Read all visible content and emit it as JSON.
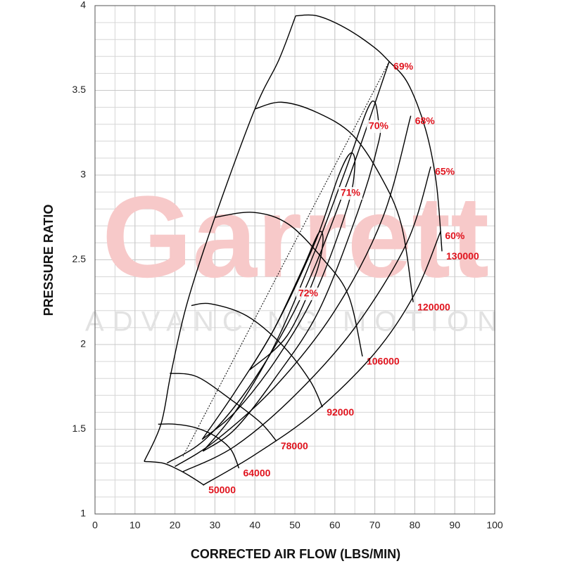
{
  "chart_data": {
    "type": "line",
    "watermark": "Garrett",
    "watermark_subtitle": "ADVANCING MOTION",
    "x_label": "CORRECTED AIR FLOW (LBS/MIN)",
    "y_label": "PRESSURE RATIO",
    "xlim": [
      0,
      100
    ],
    "ylim": [
      1,
      4
    ],
    "xticks": [
      0,
      10,
      20,
      30,
      40,
      50,
      60,
      70,
      80,
      90,
      100
    ],
    "yticks": [
      1,
      1.5,
      2,
      2.5,
      3,
      3.5,
      4
    ],
    "grid": true,
    "x_grid_step": 5,
    "y_grid_step": 0.1,
    "label_color": "#e0141e",
    "series": [
      {
        "color": "#000000",
        "x": [
          12.3,
          16.5,
          19,
          23,
          30,
          40,
          46,
          50.2
        ],
        "values": [
          1.31,
          1.53,
          1.83,
          2.24,
          2.75,
          3.39,
          3.68,
          3.94
        ]
      },
      {
        "name": "50000",
        "color": "#000000",
        "x": [
          12.3,
          17,
          21,
          24,
          27.3
        ],
        "values": [
          1.31,
          1.3,
          1.26,
          1.22,
          1.17
        ]
      },
      {
        "name": "64000",
        "color": "#000000",
        "x": [
          15.8,
          20,
          25,
          30,
          34,
          36
        ],
        "values": [
          1.53,
          1.53,
          1.51,
          1.46,
          1.38,
          1.27
        ]
      },
      {
        "name": "78000",
        "color": "#000000",
        "x": [
          18.7,
          25.5,
          34.3,
          41.4,
          45.4
        ],
        "values": [
          1.83,
          1.81,
          1.67,
          1.54,
          1.43
        ]
      },
      {
        "name": "92000",
        "color": "#000000",
        "x": [
          24.1,
          29,
          37.9,
          46.7,
          53.7,
          56.9
        ],
        "values": [
          2.23,
          2.24,
          2.17,
          2.0,
          1.79,
          1.63
        ]
      },
      {
        "name": "106000",
        "color": "#000000",
        "x": [
          29.9,
          39.6,
          48.4,
          57.2,
          63.4,
          66.9
        ],
        "values": [
          2.75,
          2.78,
          2.71,
          2.5,
          2.29,
          1.93
        ]
      },
      {
        "name": "120000",
        "color": "#000000",
        "x": [
          40,
          46.7,
          55.5,
          64.3,
          71.3,
          76.6,
          79.6
        ],
        "values": [
          3.39,
          3.43,
          3.37,
          3.24,
          3.0,
          2.71,
          2.25
        ]
      },
      {
        "name": "130000",
        "color": "#000000",
        "x": [
          50.2,
          55.5,
          62.5,
          69.5,
          73.6,
          78.3,
          82.7,
          85.4,
          86.8
        ],
        "values": [
          3.94,
          3.94,
          3.87,
          3.76,
          3.67,
          3.54,
          3.27,
          2.95,
          2.55
        ]
      },
      {
        "color": "#000000",
        "dashed": true,
        "x": [
          22,
          73.6
        ],
        "values": [
          1.34,
          3.67
        ]
      },
      {
        "name": "60%",
        "color": "#000000",
        "x": [
          27,
          40,
          55,
          70,
          80,
          86.5
        ],
        "values": [
          1.17,
          1.35,
          1.6,
          1.95,
          2.3,
          2.67
        ]
      },
      {
        "name": "65%",
        "color": "#000000",
        "x": [
          22,
          35,
          50,
          65,
          78,
          84
        ],
        "values": [
          1.25,
          1.4,
          1.7,
          2.1,
          2.6,
          3.05
        ]
      },
      {
        "name": "68%",
        "color": "#000000",
        "x": [
          20,
          30,
          45,
          60,
          72,
          79
        ],
        "values": [
          1.28,
          1.43,
          1.75,
          2.2,
          2.75,
          3.35
        ]
      },
      {
        "name": "69%",
        "color": "#000000",
        "x": [
          18,
          28,
          40,
          52,
          63,
          73.6
        ],
        "values": [
          1.3,
          1.45,
          1.8,
          2.3,
          2.95,
          3.67
        ]
      },
      {
        "name": "70%",
        "color": "#000000",
        "x": [
          27,
          35,
          45,
          55,
          63,
          68,
          70,
          71,
          71,
          66,
          56,
          45,
          35,
          27
        ],
        "values": [
          1.37,
          1.6,
          2.0,
          2.55,
          3.05,
          3.38,
          3.43,
          3.3,
          3.2,
          2.8,
          2.2,
          1.8,
          1.5,
          1.37
        ]
      },
      {
        "name": "71%",
        "color": "#000000",
        "x": [
          26.8,
          35,
          45,
          55,
          61,
          64,
          65,
          63,
          55,
          45,
          35,
          26.8
        ],
        "values": [
          1.44,
          1.72,
          2.1,
          2.6,
          3.0,
          3.13,
          3.05,
          2.8,
          2.3,
          1.9,
          1.6,
          1.44
        ]
      },
      {
        "name": "72%",
        "color": "#000000",
        "x": [
          38.7,
          45,
          52,
          56,
          57,
          55,
          48,
          38.7
        ],
        "values": [
          1.85,
          2.1,
          2.45,
          2.66,
          2.6,
          2.4,
          2.05,
          1.85
        ]
      }
    ]
  }
}
